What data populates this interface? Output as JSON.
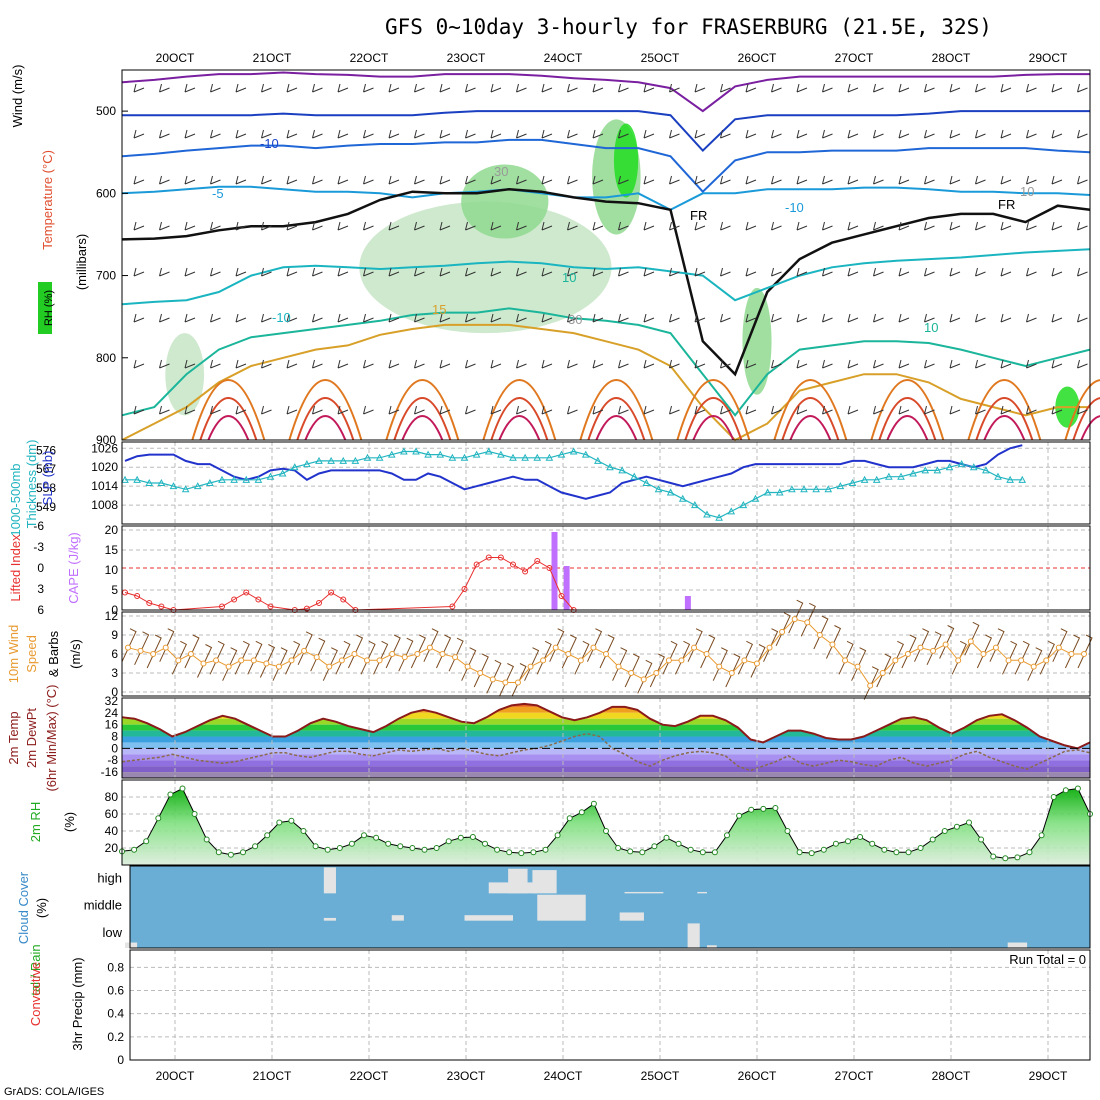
{
  "title": "GFS 0~10day 3-hourly for FRASERBURG (21.5E, 32S)",
  "credit": "GrADS: COLA/IGES",
  "dates": [
    "20OCT",
    "21OCT",
    "22OCT",
    "23OCT",
    "24OCT",
    "25OCT",
    "26OCT",
    "27OCT",
    "28OCT",
    "29OCT"
  ],
  "colors": {
    "slp": "#2233cc",
    "thickness": "#22b5c0",
    "li": "#e83030",
    "cape": "#c070ff",
    "wind10": "#e89a30",
    "barb10": "#7a4a20",
    "temp": "#8b1a1a",
    "rh2m": "#22aa22",
    "cloud": "#6aaed6",
    "cloudclear": "#e4e4e4",
    "grid": "#aaaaaa"
  },
  "chart_data": [
    {
      "id": "upper-air",
      "type": "contour",
      "ylabel_left": [
        "Wind (m/s)",
        "Temperature (°C)",
        "RH (%)"
      ],
      "ylabel_right": "(millibars)",
      "y_ticks": [
        "500",
        "600",
        "700",
        "800",
        "900"
      ],
      "ylim": [
        450,
        900
      ],
      "contour_labels": [
        "-10",
        "-5",
        "-10",
        "10",
        "15",
        "-10",
        "10",
        "FR",
        "FR",
        "30",
        "10",
        "30"
      ],
      "isotherms": [
        {
          "name": "-20",
          "color": "#7a1fa0",
          "p": [
            465,
            462,
            458,
            455,
            455,
            453,
            455,
            456,
            458,
            458,
            455,
            455,
            455,
            457,
            460,
            462,
            465,
            472,
            500,
            470,
            462,
            458,
            458,
            458,
            458,
            458,
            458,
            458,
            456,
            455,
            455
          ]
        },
        {
          "name": "-15",
          "color": "#1a3fc0",
          "p": [
            505,
            505,
            505,
            505,
            505,
            503,
            505,
            505,
            505,
            505,
            502,
            500,
            500,
            500,
            500,
            500,
            500,
            505,
            548,
            510,
            505,
            505,
            505,
            505,
            505,
            503,
            500,
            500,
            500,
            500,
            500
          ]
        },
        {
          "name": "-10",
          "color": "#1f66d6",
          "p": [
            555,
            552,
            548,
            545,
            542,
            542,
            545,
            542,
            540,
            540,
            538,
            538,
            535,
            535,
            540,
            545,
            545,
            555,
            598,
            560,
            550,
            550,
            548,
            548,
            548,
            545,
            545,
            545,
            545,
            548,
            550
          ]
        },
        {
          "name": "-5",
          "color": "#1a9ad8",
          "p": [
            600,
            598,
            595,
            592,
            592,
            595,
            598,
            598,
            600,
            605,
            600,
            598,
            595,
            600,
            605,
            605,
            600,
            620,
            600,
            600,
            595,
            595,
            595,
            593,
            593,
            595,
            598,
            598,
            600,
            600,
            602
          ]
        },
        {
          "name": "FR",
          "color": "#111111",
          "p": [
            656,
            655,
            652,
            645,
            640,
            640,
            635,
            625,
            608,
            598,
            600,
            600,
            595,
            598,
            605,
            610,
            612,
            620,
            780,
            820,
            720,
            680,
            660,
            650,
            640,
            630,
            625,
            625,
            635,
            615,
            620
          ]
        },
        {
          "name": "5",
          "color": "#1ab5c0",
          "p": [
            735,
            732,
            730,
            720,
            700,
            690,
            688,
            690,
            692,
            690,
            688,
            685,
            683,
            685,
            690,
            692,
            690,
            695,
            700,
            730,
            715,
            700,
            690,
            685,
            682,
            680,
            678,
            675,
            672,
            670,
            668
          ]
        },
        {
          "name": "10",
          "color": "#1ab59a",
          "p": [
            870,
            860,
            820,
            790,
            775,
            770,
            765,
            760,
            755,
            748,
            745,
            745,
            740,
            745,
            752,
            755,
            760,
            770,
            820,
            870,
            820,
            790,
            785,
            780,
            780,
            782,
            790,
            800,
            810,
            800,
            790
          ]
        },
        {
          "name": "15",
          "color": "#d8a028",
          "p": [
            900,
            880,
            860,
            830,
            810,
            800,
            790,
            785,
            772,
            765,
            760,
            760,
            760,
            765,
            770,
            780,
            790,
            810,
            860,
            900,
            880,
            840,
            830,
            820,
            820,
            830,
            850,
            860,
            870,
            860,
            860
          ]
        }
      ],
      "rh_blobs": [
        {
          "x": 4.65,
          "p": 560,
          "w": 0.25,
          "h": 90,
          "level": 3
        },
        {
          "x": 4.55,
          "p": 580,
          "w": 0.5,
          "h": 140,
          "level": 2
        },
        {
          "x": 3.4,
          "p": 610,
          "w": 0.9,
          "h": 90,
          "level": 2
        },
        {
          "x": 3.2,
          "p": 690,
          "w": 2.6,
          "h": 160,
          "level": 1
        },
        {
          "x": 6.0,
          "p": 780,
          "w": 0.3,
          "h": 130,
          "level": 2
        },
        {
          "x": 9.2,
          "p": 860,
          "w": 0.25,
          "h": 50,
          "level": 3
        },
        {
          "x": 0.1,
          "p": 820,
          "w": 0.4,
          "h": 100,
          "level": 1
        }
      ]
    },
    {
      "id": "slp-thickness",
      "type": "line",
      "ylabel_left": [
        "1000-500mb",
        "Thickness (dm)"
      ],
      "ylabel_right": "SLP (mb)",
      "left_ticks": [
        "576",
        "567",
        "558",
        "549"
      ],
      "right_ticks": [
        "1026",
        "1020",
        "1014",
        "1008"
      ],
      "slp_lim": [
        1002,
        1028
      ],
      "x": [
        0,
        0.125,
        0.25,
        0.375,
        0.5,
        0.625,
        0.75,
        0.875,
        1,
        1.125,
        1.25,
        1.375,
        1.5,
        1.625,
        1.75,
        1.875,
        2,
        2.125,
        2.25,
        2.375,
        2.5,
        2.625,
        2.75,
        2.875,
        3,
        3.125,
        3.25,
        3.375,
        3.5,
        3.625,
        3.75,
        3.875,
        4,
        4.125,
        4.25,
        4.375,
        4.5,
        4.625,
        4.75,
        4.875,
        5,
        5.125,
        5.25,
        5.375,
        5.5,
        5.625,
        5.75,
        5.875,
        6,
        6.125,
        6.25,
        6.375,
        6.5,
        6.625,
        6.75,
        6.875,
        7,
        7.125,
        7.25,
        7.375,
        7.5,
        7.625,
        7.75,
        7.875,
        8,
        8.125,
        8.25,
        8.375,
        8.5,
        8.625,
        8.75,
        8.875,
        9,
        9.125,
        9.25
      ],
      "slp": [
        1022,
        1023.5,
        1024,
        1024,
        1024,
        1022,
        1021,
        1021,
        1019,
        1017,
        1016,
        1017,
        1019,
        1019.5,
        1019,
        1016,
        1018,
        1019,
        1019,
        1019,
        1019,
        1019,
        1018,
        1016,
        1016,
        1018,
        1017,
        1015,
        1013,
        1014,
        1015,
        1016,
        1017,
        1016,
        1016,
        1014,
        1012,
        1011,
        1010,
        1011,
        1012,
        1015,
        1016,
        1017,
        1016,
        1015,
        1014,
        1015,
        1016,
        1017,
        1018,
        1020,
        1021,
        1021,
        1021,
        1021,
        1021,
        1021,
        1021,
        1021,
        1022,
        1022,
        1021,
        1020,
        1020,
        1020,
        1021,
        1022,
        1022,
        1021,
        1020,
        1021,
        1024,
        1026,
        1027
      ],
      "thickness_mb": [
        1016,
        1016,
        1015,
        1015,
        1014,
        1013,
        1014,
        1015,
        1016,
        1016,
        1016,
        1016,
        1017,
        1018,
        1020,
        1021,
        1022,
        1022,
        1022,
        1022,
        1023,
        1023,
        1024,
        1025,
        1025,
        1024,
        1024,
        1023,
        1023,
        1024,
        1025,
        1024,
        1023,
        1023,
        1023,
        1023,
        1024,
        1025,
        1024,
        1022,
        1020,
        1019,
        1017,
        1015,
        1013,
        1012,
        1010,
        1008,
        1005,
        1004,
        1006,
        1008,
        1010,
        1012,
        1012,
        1013,
        1013,
        1013,
        1013,
        1014,
        1015,
        1016,
        1016,
        1017,
        1017,
        1018,
        1019,
        1019,
        1020,
        1021,
        1020,
        1019,
        1017,
        1016,
        1016
      ]
    },
    {
      "id": "cape-li",
      "type": "bar+line",
      "ylabel_left": "Lifted Index",
      "ylabel_right": "CAPE (J/kg)",
      "left_ticks": [
        "-6",
        "-3",
        "0",
        "3",
        "6"
      ],
      "right_ticks": [
        "20",
        "15",
        "10",
        "5",
        "0"
      ],
      "cape_lim": [
        0,
        21
      ],
      "cape_bars": [
        {
          "x": 4.5,
          "v": 19.5
        },
        {
          "x": 4.625,
          "v": 11
        },
        {
          "x": 5.875,
          "v": 3.5
        }
      ],
      "li": [
        {
          "x": 0,
          "v": 3.5
        },
        {
          "x": 0.125,
          "v": 4
        },
        {
          "x": 0.25,
          "v": 5
        },
        {
          "x": 0.375,
          "v": 5.5
        },
        {
          "x": 0.5,
          "v": 6
        },
        {
          "x": 1.0,
          "v": 5.5
        },
        {
          "x": 1.125,
          "v": 4.5
        },
        {
          "x": 1.25,
          "v": 3.5
        },
        {
          "x": 1.375,
          "v": 4.5
        },
        {
          "x": 1.5,
          "v": 5.5
        },
        {
          "x": 1.75,
          "v": 6
        },
        {
          "x": 1.875,
          "v": 5.8
        },
        {
          "x": 2.0,
          "v": 5
        },
        {
          "x": 2.125,
          "v": 3.5
        },
        {
          "x": 2.25,
          "v": 4.5
        },
        {
          "x": 2.375,
          "v": 6
        },
        {
          "x": 3.375,
          "v": 5.5
        },
        {
          "x": 3.5,
          "v": 3
        },
        {
          "x": 3.625,
          "v": -0.5
        },
        {
          "x": 3.75,
          "v": -1.5
        },
        {
          "x": 3.875,
          "v": -1.5
        },
        {
          "x": 4.0,
          "v": -0.5
        },
        {
          "x": 4.125,
          "v": 0.5
        },
        {
          "x": 4.25,
          "v": -1
        },
        {
          "x": 4.375,
          "v": 0
        },
        {
          "x": 4.5,
          "v": 4
        },
        {
          "x": 4.625,
          "v": 6
        }
      ],
      "zero_line": 0
    },
    {
      "id": "wind10m",
      "type": "line",
      "ylabel": [
        "10m Wind",
        "Speed",
        "& Barbs",
        "(m/s)"
      ],
      "ticks": [
        "12",
        "9",
        "6",
        "3",
        "0"
      ],
      "ylim": [
        0,
        12
      ],
      "speed": [
        7,
        6.5,
        6,
        7,
        5,
        6,
        4.5,
        5,
        4,
        5,
        5,
        4.5,
        4,
        5,
        6.5,
        5.5,
        4,
        5,
        6,
        5,
        5,
        6,
        5.5,
        6,
        7,
        6,
        5.5,
        4,
        3,
        2,
        1.5,
        1.5,
        4,
        5,
        7,
        6,
        5,
        7,
        6,
        4,
        3,
        2,
        3,
        5,
        5,
        7,
        6,
        4,
        3,
        5,
        4.5,
        7,
        9.5,
        11.5,
        11,
        9,
        7.5,
        5,
        4,
        1,
        3,
        5,
        6,
        7,
        6.5,
        7.5,
        5,
        8,
        6,
        7,
        5,
        5,
        4,
        5,
        7,
        6,
        6
      ]
    },
    {
      "id": "temp2m",
      "type": "area",
      "ylabel": [
        "2m Temp",
        "2m DewPt",
        "(6hr Min/Max) (°C)"
      ],
      "ticks": [
        "32",
        "24",
        "16",
        "8",
        "0",
        "-8",
        "-16"
      ],
      "ylim": [
        -20,
        34
      ],
      "temp": [
        21,
        20,
        17,
        13,
        8,
        11,
        15,
        19,
        22,
        20,
        16,
        12,
        8,
        8,
        12,
        17,
        20,
        18,
        15,
        13,
        11,
        15,
        20,
        24,
        26,
        24,
        21,
        18,
        17,
        21,
        26,
        29,
        30,
        29,
        25,
        21,
        19,
        21,
        24,
        28,
        28,
        26,
        20,
        16,
        15,
        18,
        22,
        22,
        19,
        14,
        6,
        4,
        8,
        12,
        12,
        10,
        7,
        6,
        6,
        8,
        12,
        16,
        20,
        21,
        19,
        14,
        10,
        14,
        19,
        22,
        23,
        19,
        14,
        8,
        5,
        2,
        0,
        4
      ],
      "dewpt": [
        -9,
        -8,
        -7,
        -6,
        -4,
        -6,
        -8,
        -9,
        -10,
        -9,
        -7,
        -5,
        -3,
        -3,
        -5,
        -6,
        -4,
        -2,
        -2,
        -4,
        -5,
        -3,
        -1,
        -2,
        -1,
        0,
        -2,
        0,
        -2,
        -4,
        -5,
        -3,
        -1,
        0,
        2,
        5,
        8,
        10,
        8,
        0,
        -4,
        -9,
        -12,
        -8,
        -5,
        -3,
        -2,
        -3,
        -5,
        -12,
        -15,
        -12,
        -9,
        -5,
        -10,
        -12,
        -10,
        -8,
        -9,
        -11,
        -12,
        -8,
        -6,
        -10,
        -12,
        -10,
        -8,
        -4,
        -2,
        -6,
        -9,
        -12,
        -14,
        -10,
        -6,
        -2,
        -1,
        -3
      ]
    },
    {
      "id": "rh2m",
      "type": "area",
      "ylabel": [
        "2m RH",
        "(%)"
      ],
      "ticks": [
        "80",
        "60",
        "40",
        "20"
      ],
      "ylim": [
        0,
        100
      ],
      "rh": [
        16,
        18,
        28,
        55,
        83,
        90,
        60,
        30,
        15,
        12,
        15,
        22,
        35,
        50,
        52,
        40,
        22,
        18,
        20,
        25,
        35,
        32,
        25,
        22,
        20,
        18,
        20,
        28,
        32,
        33,
        25,
        18,
        15,
        14,
        15,
        18,
        35,
        55,
        62,
        72,
        40,
        20,
        16,
        15,
        22,
        32,
        25,
        18,
        15,
        15,
        35,
        58,
        65,
        66,
        67,
        40,
        15,
        14,
        18,
        25,
        28,
        33,
        25,
        18,
        15,
        15,
        20,
        30,
        40,
        45,
        50,
        30,
        10,
        8,
        9,
        15,
        35,
        80,
        88,
        90,
        60
      ]
    },
    {
      "id": "cloud",
      "type": "heatmap",
      "ylabel": [
        "Cloud Cover",
        "(%)"
      ],
      "row_labels": [
        "high",
        "middle",
        "low"
      ],
      "high": [
        {
          "x": 2.05,
          "w": 0.125,
          "v": 0.95
        },
        {
          "x": 3.75,
          "w": 0.5,
          "v": 0.4
        },
        {
          "x": 3.95,
          "w": 0.2,
          "v": 0.9
        },
        {
          "x": 4.2,
          "w": 0.25,
          "v": 0.85
        },
        {
          "x": 5.15,
          "w": 0.4,
          "v": 0.05
        },
        {
          "x": 5.9,
          "w": 0.1,
          "v": 0.05
        }
      ],
      "middle": [
        {
          "x": 2.05,
          "w": 0.125,
          "v": 0.1
        },
        {
          "x": 2.75,
          "w": 0.125,
          "v": 0.2
        },
        {
          "x": 3.5,
          "w": 0.5,
          "v": 0.2
        },
        {
          "x": 4.25,
          "w": 0.5,
          "v": 0.95
        },
        {
          "x": 5.1,
          "w": 0.25,
          "v": 0.3
        }
      ],
      "low": [
        {
          "x": 0.0,
          "w": 0.125,
          "v": 0.2
        },
        {
          "x": 5.8,
          "w": 0.125,
          "v": 0.9
        },
        {
          "x": 6.0,
          "w": 0.1,
          "v": 0.1
        },
        {
          "x": 9.1,
          "w": 0.2,
          "v": 0.2
        }
      ]
    },
    {
      "id": "precip",
      "type": "bar",
      "ylabel_left": [
        "tal / Rain",
        "Convective"
      ],
      "ylabel_right": [
        "3hr Precip (mm)"
      ],
      "ticks": [
        "0.8",
        "0.6",
        "0.4",
        "0.2",
        "0"
      ],
      "ylim": [
        0,
        0.95
      ],
      "run_total_label": "Run Total = 0",
      "values": []
    }
  ]
}
